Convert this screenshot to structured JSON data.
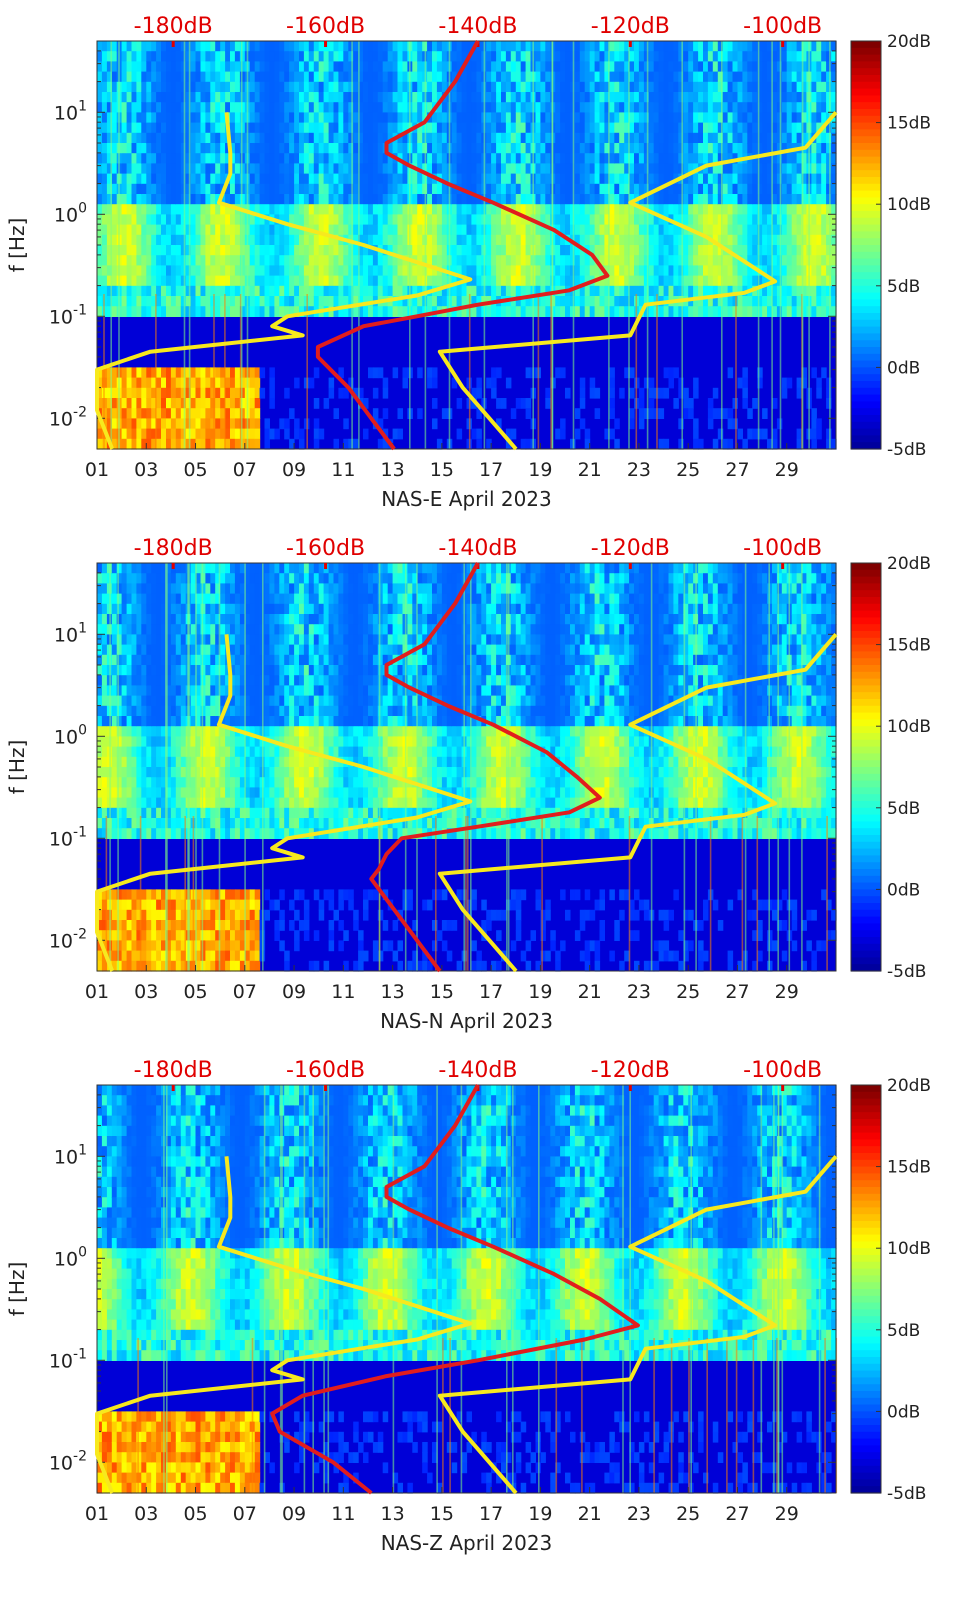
{
  "colors": {
    "noise_curves": "#f7e91e",
    "median_curve": "#e11d1d",
    "top_axis_text": "#e00000",
    "colormap": [
      "#00008f",
      "#0000ff",
      "#007fff",
      "#00ffff",
      "#7fff7f",
      "#ffff00",
      "#ff7f00",
      "#ff0000",
      "#7f0000"
    ]
  },
  "chart_data": [
    {
      "type": "heatmap",
      "xlabel": "NAS-E April 2023",
      "ylabel": "f [Hz]",
      "x_ticks": [
        "01",
        "03",
        "05",
        "07",
        "09",
        "11",
        "13",
        "15",
        "17",
        "19",
        "21",
        "23",
        "25",
        "27",
        "29"
      ],
      "y_ticks": [
        "10^-2",
        "10^-1",
        "10^0",
        "10^1"
      ],
      "ylim_hz": [
        0.005,
        50
      ],
      "y_scale": "log",
      "xlim_days": [
        1,
        31
      ],
      "top_axis_ticks": [
        "-180dB",
        "-160dB",
        "-140dB",
        "-120dB",
        "-100dB"
      ],
      "top_axis_range_db": [
        -190,
        -93
      ],
      "colorbar": {
        "ticks": [
          "20dB",
          "15dB",
          "10dB",
          "5dB",
          "0dB",
          "-5dB"
        ],
        "range_db": [
          -5,
          20
        ]
      },
      "yellow_lines": [
        {
          "points": [
            [
              -173,
              10
            ],
            [
              -172.5,
              4
            ],
            [
              -172.5,
              2.5
            ],
            [
              -174,
              1.3
            ],
            [
              -165,
              0.8
            ],
            [
              -155,
              0.5
            ],
            [
              -141,
              0.23
            ],
            [
              -148,
              0.16
            ],
            [
              -165,
              0.1
            ],
            [
              -167,
              0.08
            ],
            [
              -163,
              0.065
            ],
            [
              -183,
              0.045
            ],
            [
              -190,
              0.03
            ],
            [
              -190,
              0.02
            ],
            [
              -190,
              0.012
            ],
            [
              -188,
              0.005
            ]
          ]
        },
        {
          "points": [
            [
              -93,
              10
            ],
            [
              -97,
              4.5
            ],
            [
              -110,
              3
            ],
            [
              -120,
              1.3
            ],
            [
              -110,
              0.6
            ],
            [
              -101,
              0.22
            ],
            [
              -105,
              0.17
            ],
            [
              -118,
              0.13
            ],
            [
              -120,
              0.065
            ],
            [
              -145,
              0.045
            ],
            [
              -142,
              0.02
            ],
            [
              -135,
              0.005
            ]
          ]
        }
      ],
      "red_line": {
        "points": [
          [
            -140,
            50
          ],
          [
            -143,
            20
          ],
          [
            -147,
            8
          ],
          [
            -152,
            5
          ],
          [
            -152,
            4
          ],
          [
            -149,
            3
          ],
          [
            -144,
            2
          ],
          [
            -138,
            1.3
          ],
          [
            -130,
            0.7
          ],
          [
            -125,
            0.4
          ],
          [
            -123,
            0.25
          ],
          [
            -128,
            0.18
          ],
          [
            -140,
            0.13
          ],
          [
            -148,
            0.1
          ],
          [
            -155,
            0.08
          ],
          [
            -161,
            0.05
          ],
          [
            -161,
            0.04
          ],
          [
            -157,
            0.02
          ],
          [
            -151,
            0.005
          ]
        ]
      }
    },
    {
      "type": "heatmap",
      "xlabel": "NAS-N April 2023",
      "ylabel": "f [Hz]",
      "x_ticks": [
        "01",
        "03",
        "05",
        "07",
        "09",
        "11",
        "13",
        "15",
        "17",
        "19",
        "21",
        "23",
        "25",
        "27",
        "29"
      ],
      "y_ticks": [
        "10^-2",
        "10^-1",
        "10^0",
        "10^1"
      ],
      "ylim_hz": [
        0.005,
        50
      ],
      "y_scale": "log",
      "xlim_days": [
        1,
        31
      ],
      "top_axis_ticks": [
        "-180dB",
        "-160dB",
        "-140dB",
        "-120dB",
        "-100dB"
      ],
      "top_axis_range_db": [
        -190,
        -93
      ],
      "colorbar": {
        "ticks": [
          "20dB",
          "15dB",
          "10dB",
          "5dB",
          "0dB",
          "-5dB"
        ],
        "range_db": [
          -5,
          20
        ]
      },
      "yellow_lines": [
        {
          "points": [
            [
              -173,
              10
            ],
            [
              -172.5,
              4
            ],
            [
              -172.5,
              2.5
            ],
            [
              -174,
              1.3
            ],
            [
              -165,
              0.8
            ],
            [
              -155,
              0.5
            ],
            [
              -141,
              0.23
            ],
            [
              -148,
              0.16
            ],
            [
              -165,
              0.1
            ],
            [
              -167,
              0.08
            ],
            [
              -163,
              0.065
            ],
            [
              -183,
              0.045
            ],
            [
              -190,
              0.03
            ],
            [
              -190,
              0.02
            ],
            [
              -190,
              0.012
            ],
            [
              -188,
              0.005
            ]
          ]
        },
        {
          "points": [
            [
              -93,
              10
            ],
            [
              -97,
              4.5
            ],
            [
              -110,
              3
            ],
            [
              -120,
              1.3
            ],
            [
              -110,
              0.6
            ],
            [
              -101,
              0.22
            ],
            [
              -105,
              0.17
            ],
            [
              -118,
              0.13
            ],
            [
              -120,
              0.065
            ],
            [
              -145,
              0.045
            ],
            [
              -142,
              0.02
            ],
            [
              -135,
              0.005
            ]
          ]
        }
      ],
      "red_line": {
        "points": [
          [
            -140,
            50
          ],
          [
            -143,
            20
          ],
          [
            -147,
            8
          ],
          [
            -152,
            5
          ],
          [
            -152,
            4
          ],
          [
            -149,
            3
          ],
          [
            -144,
            2
          ],
          [
            -138,
            1.3
          ],
          [
            -131,
            0.7
          ],
          [
            -127,
            0.4
          ],
          [
            -124,
            0.25
          ],
          [
            -128,
            0.18
          ],
          [
            -140,
            0.13
          ],
          [
            -150,
            0.1
          ],
          [
            -152,
            0.07
          ],
          [
            -153,
            0.05
          ],
          [
            -154,
            0.04
          ],
          [
            -151,
            0.02
          ],
          [
            -145,
            0.005
          ]
        ]
      }
    },
    {
      "type": "heatmap",
      "xlabel": "NAS-Z April 2023",
      "ylabel": "f [Hz]",
      "x_ticks": [
        "01",
        "03",
        "05",
        "07",
        "09",
        "11",
        "13",
        "15",
        "17",
        "19",
        "21",
        "23",
        "25",
        "27",
        "29"
      ],
      "y_ticks": [
        "10^-2",
        "10^-1",
        "10^0",
        "10^1"
      ],
      "ylim_hz": [
        0.005,
        50
      ],
      "y_scale": "log",
      "xlim_days": [
        1,
        31
      ],
      "top_axis_ticks": [
        "-180dB",
        "-160dB",
        "-140dB",
        "-120dB",
        "-100dB"
      ],
      "top_axis_range_db": [
        -190,
        -93
      ],
      "colorbar": {
        "ticks": [
          "20dB",
          "15dB",
          "10dB",
          "5dB",
          "0dB",
          "-5dB"
        ],
        "range_db": [
          -5,
          20
        ]
      },
      "yellow_lines": [
        {
          "points": [
            [
              -173,
              10
            ],
            [
              -172.5,
              4
            ],
            [
              -172.5,
              2.5
            ],
            [
              -174,
              1.3
            ],
            [
              -165,
              0.8
            ],
            [
              -155,
              0.5
            ],
            [
              -141,
              0.23
            ],
            [
              -148,
              0.16
            ],
            [
              -165,
              0.1
            ],
            [
              -167,
              0.08
            ],
            [
              -163,
              0.065
            ],
            [
              -183,
              0.045
            ],
            [
              -190,
              0.03
            ],
            [
              -190,
              0.02
            ],
            [
              -190,
              0.012
            ],
            [
              -188,
              0.005
            ]
          ]
        },
        {
          "points": [
            [
              -93,
              10
            ],
            [
              -97,
              4.5
            ],
            [
              -110,
              3
            ],
            [
              -120,
              1.3
            ],
            [
              -110,
              0.6
            ],
            [
              -101,
              0.22
            ],
            [
              -105,
              0.17
            ],
            [
              -118,
              0.13
            ],
            [
              -120,
              0.065
            ],
            [
              -145,
              0.045
            ],
            [
              -142,
              0.02
            ],
            [
              -135,
              0.005
            ]
          ]
        }
      ],
      "red_line": {
        "points": [
          [
            -140,
            50
          ],
          [
            -143,
            20
          ],
          [
            -147,
            8
          ],
          [
            -152,
            5
          ],
          [
            -152,
            4
          ],
          [
            -149,
            3
          ],
          [
            -144,
            2
          ],
          [
            -138,
            1.3
          ],
          [
            -130,
            0.7
          ],
          [
            -124,
            0.4
          ],
          [
            -119,
            0.22
          ],
          [
            -126,
            0.16
          ],
          [
            -140,
            0.1
          ],
          [
            -152,
            0.07
          ],
          [
            -163,
            0.045
          ],
          [
            -167,
            0.03
          ],
          [
            -166,
            0.02
          ],
          [
            -159,
            0.01
          ],
          [
            -154,
            0.005
          ]
        ]
      }
    }
  ]
}
